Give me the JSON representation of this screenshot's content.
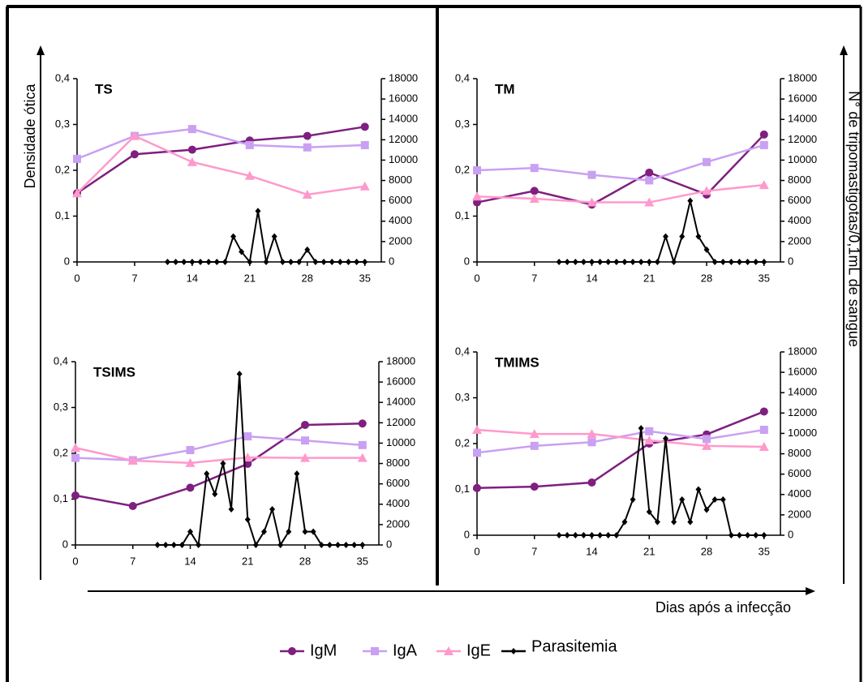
{
  "y_label": "Densidade ótica",
  "y2_label": "N° de tripomastigotas/0,1mL de sangue",
  "x_label": "Dias após a infecção",
  "chart_data": [
    {
      "type": "line",
      "title": "TS",
      "xlim": [
        0,
        37
      ],
      "xticks": [
        0,
        7,
        14,
        21,
        28,
        35
      ],
      "ylim": [
        0,
        0.4
      ],
      "yticks": [
        0,
        {
          "value": 0.1,
          "label": "0,1"
        },
        {
          "value": 0.2,
          "label": "0,2"
        },
        {
          "value": 0.3,
          "label": "0,3"
        },
        {
          "value": 0.4,
          "label": "0,4"
        }
      ],
      "y2lim": [
        0,
        18000
      ],
      "y2ticks": [
        0,
        2000,
        4000,
        6000,
        8000,
        10000,
        12000,
        14000,
        16000,
        18000
      ],
      "series": [
        {
          "name": "IgM",
          "color": "#7f1f7f",
          "marker": "circle",
          "x": [
            0,
            7,
            14,
            21,
            28,
            35
          ],
          "values": [
            0.15,
            0.235,
            0.245,
            0.265,
            0.275,
            0.295
          ]
        },
        {
          "name": "IgA",
          "color": "#c9a0f2",
          "marker": "square",
          "x": [
            0,
            7,
            14,
            21,
            28,
            35
          ],
          "values": [
            0.225,
            0.275,
            0.29,
            0.255,
            0.25,
            0.255
          ]
        },
        {
          "name": "IgE",
          "color": "#ff99cc",
          "marker": "triangle",
          "x": [
            0,
            7,
            14,
            21,
            28,
            35
          ],
          "values": [
            0.15,
            0.275,
            0.218,
            0.188,
            0.147,
            0.165
          ]
        },
        {
          "name": "Parasitemia",
          "color": "#000000",
          "marker": "diamond",
          "axis": "y2",
          "x": [
            11,
            12,
            13,
            14,
            15,
            16,
            17,
            18,
            19,
            20,
            21,
            22,
            23,
            24,
            25,
            26,
            27,
            28,
            29,
            30,
            31,
            32,
            33,
            34,
            35
          ],
          "values": [
            0,
            0,
            0,
            0,
            0,
            0,
            0,
            0,
            2500,
            1000,
            0,
            5000,
            0,
            2500,
            0,
            0,
            0,
            1200,
            0,
            0,
            0,
            0,
            0,
            0,
            0
          ]
        }
      ]
    },
    {
      "type": "line",
      "title": "TM",
      "xlim": [
        0,
        37
      ],
      "xticks": [
        0,
        7,
        14,
        21,
        28,
        35
      ],
      "ylim": [
        0,
        0.4
      ],
      "yticks": [
        0,
        {
          "value": 0.1,
          "label": "0,1"
        },
        {
          "value": 0.2,
          "label": "0,2"
        },
        {
          "value": 0.3,
          "label": "0,3"
        },
        {
          "value": 0.4,
          "label": "0,4"
        }
      ],
      "y2lim": [
        0,
        18000
      ],
      "y2ticks": [
        0,
        2000,
        4000,
        6000,
        8000,
        10000,
        12000,
        14000,
        16000,
        18000
      ],
      "series": [
        {
          "name": "IgM",
          "color": "#7f1f7f",
          "marker": "circle",
          "x": [
            0,
            7,
            14,
            21,
            28,
            35
          ],
          "values": [
            0.13,
            0.155,
            0.125,
            0.195,
            0.147,
            0.278
          ]
        },
        {
          "name": "IgA",
          "color": "#c9a0f2",
          "marker": "square",
          "x": [
            0,
            7,
            14,
            21,
            28,
            35
          ],
          "values": [
            0.2,
            0.205,
            0.19,
            0.178,
            0.218,
            0.255
          ]
        },
        {
          "name": "IgE",
          "color": "#ff99cc",
          "marker": "triangle",
          "x": [
            0,
            7,
            14,
            21,
            28,
            35
          ],
          "values": [
            0.143,
            0.138,
            0.13,
            0.13,
            0.155,
            0.168
          ]
        },
        {
          "name": "Parasitemia",
          "color": "#000000",
          "marker": "diamond",
          "axis": "y2",
          "x": [
            10,
            11,
            12,
            13,
            14,
            15,
            16,
            17,
            18,
            19,
            20,
            21,
            22,
            23,
            24,
            25,
            26,
            27,
            28,
            29,
            30,
            31,
            32,
            33,
            34,
            35
          ],
          "values": [
            0,
            0,
            0,
            0,
            0,
            0,
            0,
            0,
            0,
            0,
            0,
            0,
            0,
            2500,
            0,
            2500,
            6000,
            2500,
            1200,
            0,
            0,
            0,
            0,
            0,
            0,
            0
          ]
        }
      ]
    },
    {
      "type": "line",
      "title": "TSIMS",
      "xlim": [
        0,
        37
      ],
      "xticks": [
        0,
        7,
        14,
        21,
        28,
        35
      ],
      "ylim": [
        0,
        0.4
      ],
      "yticks": [
        0,
        {
          "value": 0.1,
          "label": "0,1"
        },
        {
          "value": 0.2,
          "label": "0,2"
        },
        {
          "value": 0.3,
          "label": "0,3"
        },
        {
          "value": 0.4,
          "label": "0,4"
        }
      ],
      "y2lim": [
        0,
        18000
      ],
      "y2ticks": [
        0,
        2000,
        4000,
        6000,
        8000,
        10000,
        12000,
        14000,
        16000,
        18000
      ],
      "series": [
        {
          "name": "IgM",
          "color": "#7f1f7f",
          "marker": "circle",
          "x": [
            0,
            7,
            14,
            21,
            28,
            35
          ],
          "values": [
            0.108,
            0.085,
            0.125,
            0.177,
            0.262,
            0.265
          ]
        },
        {
          "name": "IgA",
          "color": "#c9a0f2",
          "marker": "square",
          "x": [
            0,
            7,
            14,
            21,
            28,
            35
          ],
          "values": [
            0.19,
            0.185,
            0.207,
            0.237,
            0.228,
            0.218
          ]
        },
        {
          "name": "IgE",
          "color": "#ff99cc",
          "marker": "triangle",
          "x": [
            0,
            7,
            14,
            21,
            28,
            35
          ],
          "values": [
            0.212,
            0.184,
            0.179,
            0.191,
            0.19,
            0.19
          ]
        },
        {
          "name": "Parasitemia",
          "color": "#000000",
          "marker": "diamond",
          "axis": "y2",
          "x": [
            10,
            11,
            12,
            13,
            14,
            15,
            16,
            17,
            18,
            19,
            20,
            21,
            22,
            23,
            24,
            25,
            26,
            27,
            28,
            29,
            30,
            31,
            32,
            33,
            34,
            35
          ],
          "values": [
            0,
            0,
            0,
            0,
            1300,
            0,
            7000,
            5000,
            8000,
            3500,
            16800,
            2500,
            0,
            1300,
            3500,
            0,
            1300,
            7000,
            1300,
            1300,
            0,
            0,
            0,
            0,
            0,
            0
          ]
        }
      ]
    },
    {
      "type": "line",
      "title": "TMIMS",
      "xlim": [
        0,
        37
      ],
      "xticks": [
        0,
        7,
        14,
        21,
        28,
        35
      ],
      "ylim": [
        0,
        0.4
      ],
      "yticks": [
        0,
        {
          "value": 0.1,
          "label": "0,1"
        },
        {
          "value": 0.2,
          "label": "0,2"
        },
        {
          "value": 0.3,
          "label": "0,3"
        },
        {
          "value": 0.4,
          "label": "0,4"
        }
      ],
      "y2lim": [
        0,
        18000
      ],
      "y2ticks": [
        0,
        2000,
        4000,
        6000,
        8000,
        10000,
        12000,
        14000,
        16000,
        18000
      ],
      "series": [
        {
          "name": "IgM",
          "color": "#7f1f7f",
          "marker": "circle",
          "x": [
            0,
            7,
            14,
            21,
            28,
            35
          ],
          "values": [
            0.103,
            0.106,
            0.115,
            0.2,
            0.22,
            0.27
          ]
        },
        {
          "name": "IgA",
          "color": "#c9a0f2",
          "marker": "square",
          "x": [
            0,
            7,
            14,
            21,
            28,
            35
          ],
          "values": [
            0.18,
            0.195,
            0.203,
            0.227,
            0.21,
            0.23
          ]
        },
        {
          "name": "IgE",
          "color": "#ff99cc",
          "marker": "triangle",
          "x": [
            0,
            7,
            14,
            21,
            28,
            35
          ],
          "values": [
            0.23,
            0.221,
            0.221,
            0.207,
            0.195,
            0.193
          ]
        },
        {
          "name": "Parasitemia",
          "color": "#000000",
          "marker": "diamond",
          "axis": "y2",
          "x": [
            10,
            11,
            12,
            13,
            14,
            15,
            16,
            17,
            18,
            19,
            20,
            21,
            22,
            23,
            24,
            25,
            26,
            27,
            28,
            29,
            30,
            31,
            32,
            33,
            34,
            35
          ],
          "values": [
            0,
            0,
            0,
            0,
            0,
            0,
            0,
            0,
            1300,
            3500,
            10500,
            2300,
            1300,
            9500,
            1300,
            3500,
            1300,
            4500,
            2500,
            3500,
            3500,
            0,
            0,
            0,
            0,
            0
          ]
        }
      ]
    }
  ]
}
